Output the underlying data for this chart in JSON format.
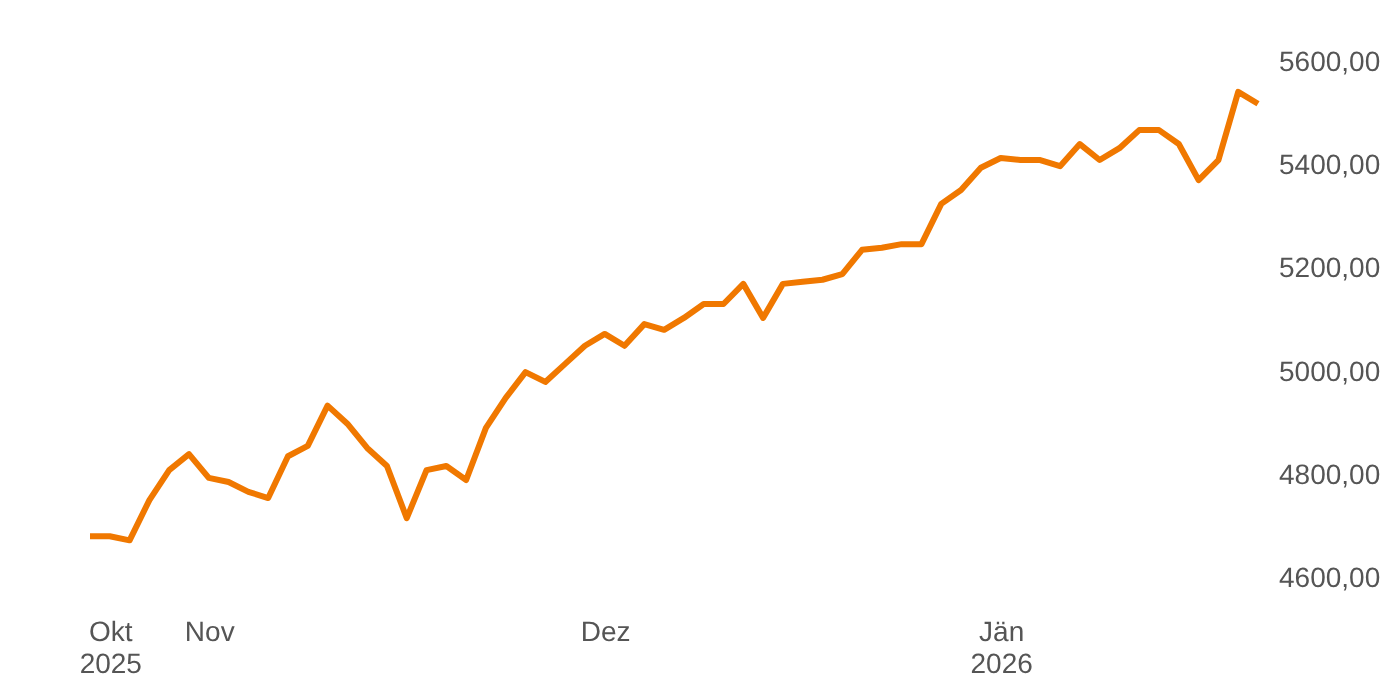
{
  "chart_data": {
    "type": "line",
    "categories": [
      null,
      "Okt 2025",
      null,
      null,
      null,
      null,
      "Nov",
      null,
      null,
      null,
      null,
      null,
      null,
      null,
      null,
      null,
      null,
      null,
      null,
      null,
      null,
      null,
      null,
      null,
      null,
      null,
      "Dez",
      null,
      null,
      null,
      null,
      null,
      null,
      null,
      null,
      null,
      null,
      null,
      null,
      null,
      null,
      null,
      null,
      null,
      null,
      null,
      "Jän 2026",
      null,
      null,
      null,
      null,
      null,
      null,
      null,
      null,
      null,
      null,
      null,
      null,
      null
    ],
    "series": [
      {
        "color": "#f07800",
        "values": [
          4681,
          4681,
          4673,
          4751,
          4809,
          4840,
          4794,
          4786,
          4767,
          4755,
          4836,
          4856,
          4934,
          4899,
          4852,
          4817,
          4716,
          4809,
          4817,
          4790,
          4891,
          4949,
          4999,
          4980,
          5015,
          5050,
          5073,
          5050,
          5092,
          5081,
          5104,
          5131,
          5131,
          5170,
          5104,
          5170,
          5174,
          5178,
          5189,
          5236,
          5240,
          5247,
          5247,
          5325,
          5352,
          5395,
          5414,
          5410,
          5410,
          5398,
          5441,
          5410,
          5433,
          5468,
          5468,
          5441,
          5371,
          5410,
          5542,
          5519
        ]
      }
    ],
    "ylim": [
      4600,
      5600
    ],
    "yticks": [
      {
        "value": 4600,
        "label": "4600,00"
      },
      {
        "value": 4800,
        "label": "4800,00"
      },
      {
        "value": 5000,
        "label": "5000,00"
      },
      {
        "value": 5200,
        "label": "5200,00"
      },
      {
        "value": 5400,
        "label": "5400,00"
      },
      {
        "value": 5600,
        "label": "5600,00"
      }
    ],
    "grid": false,
    "line_style": "solid",
    "marker": "none"
  }
}
